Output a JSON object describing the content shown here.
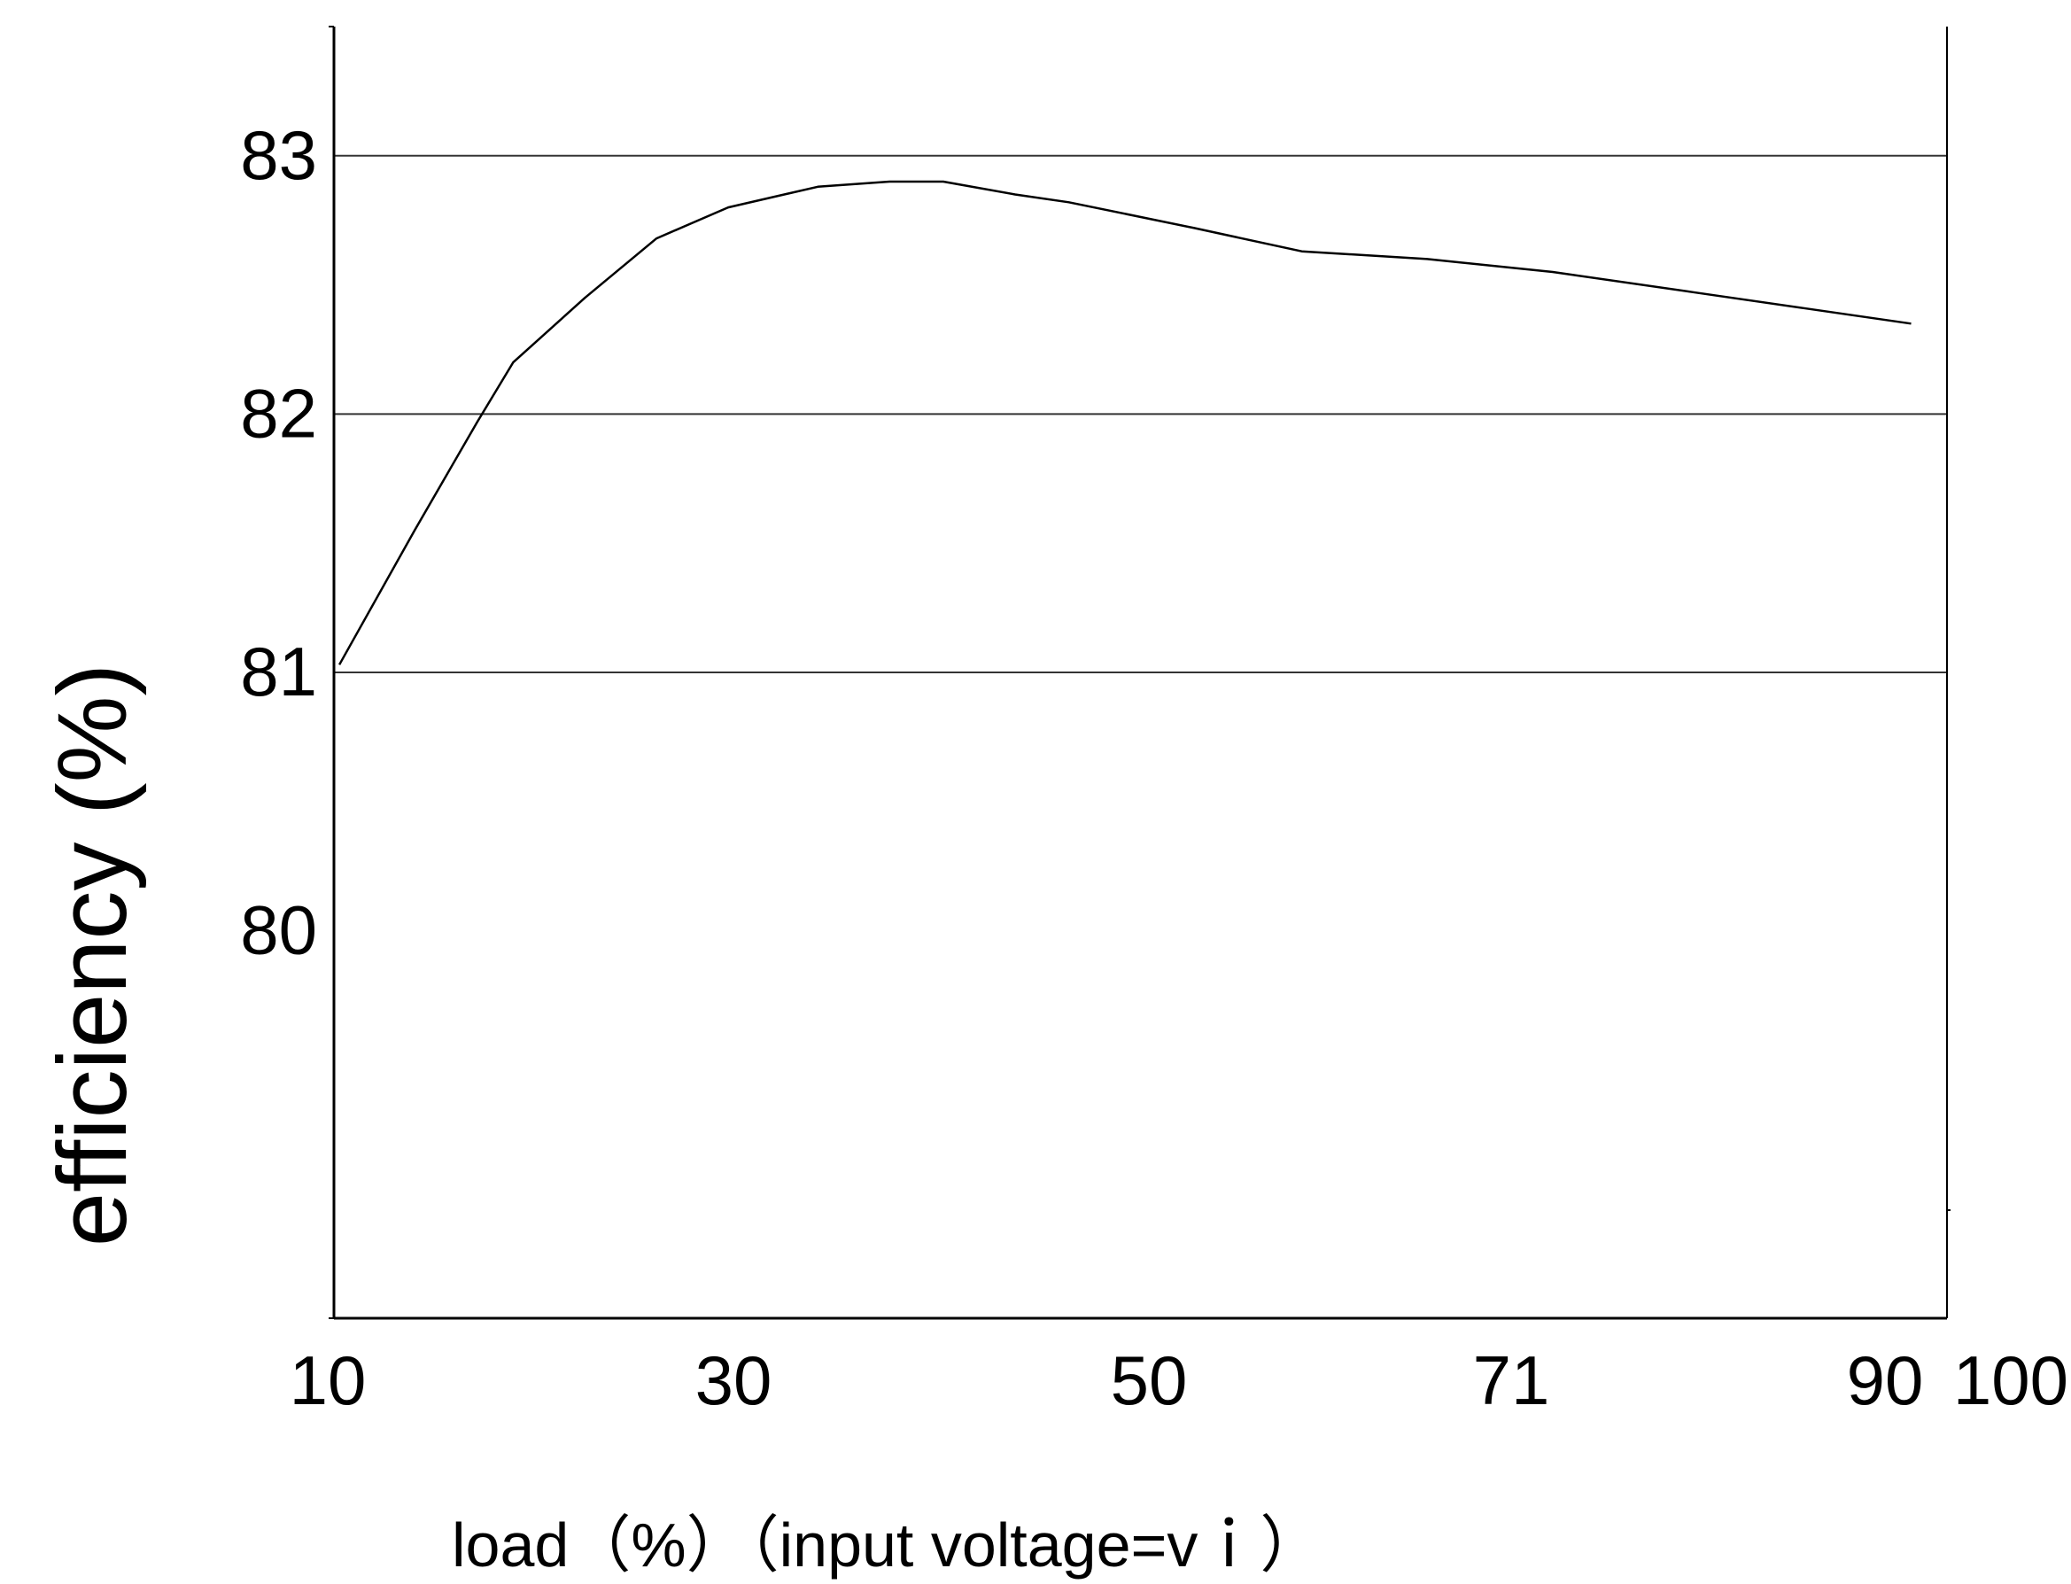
{
  "chart_data": {
    "type": "line",
    "title": "",
    "xlabel": "load（%）（input voltage=vｉ）",
    "ylabel": "efficiency (%)",
    "x_tick_labels": [
      "10",
      "30",
      "50",
      "71",
      "90",
      "100"
    ],
    "y_tick_labels": [
      "80",
      "81",
      "82",
      "83"
    ],
    "xlim": [
      10,
      100
    ],
    "ylim": [
      78.5,
      83.5
    ],
    "grid": {
      "horizontal": [
        81,
        82,
        83
      ],
      "vertical": false
    },
    "legend": "none",
    "series": [
      {
        "x": [
          10.3,
          14.5,
          18,
          20,
          24,
          28,
          32,
          37,
          41,
          44,
          48,
          51,
          58,
          64,
          71,
          78,
          86,
          92,
          98
        ],
        "y": [
          81.03,
          81.55,
          81.97,
          82.2,
          82.45,
          82.68,
          82.8,
          82.88,
          82.9,
          82.9,
          82.85,
          82.82,
          82.72,
          82.63,
          82.6,
          82.55,
          82.47,
          82.41,
          82.35
        ]
      }
    ],
    "colors": {
      "line": "#000000",
      "grid": "#333333",
      "axis": "#000000"
    }
  }
}
